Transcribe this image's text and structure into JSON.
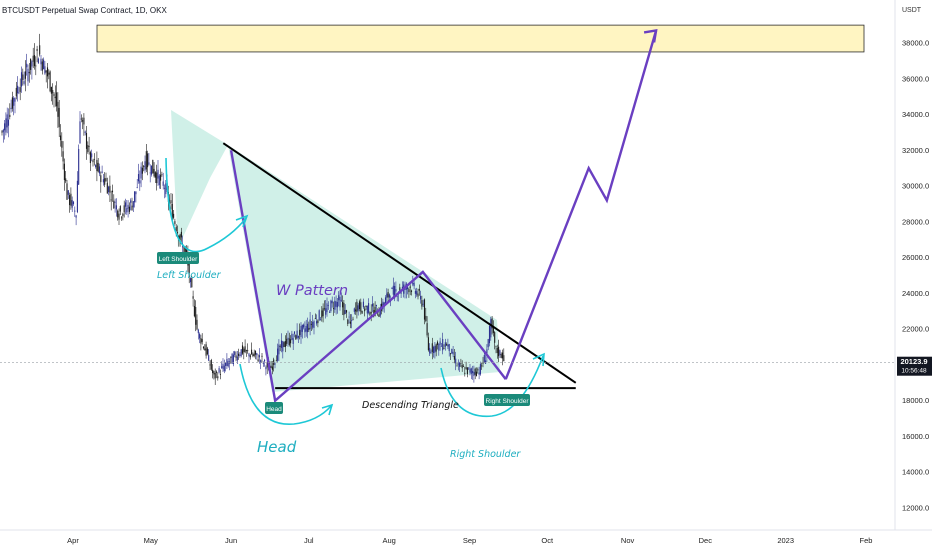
{
  "header": {
    "symbol_title": "BTCUSDT Perpetual Swap Contract, 1D, OKX"
  },
  "price_axis": {
    "unit_label": "USDT"
  },
  "last_price": {
    "value": "20123.9",
    "countdown": "10:56:48"
  },
  "colors": {
    "up": "#26a69a",
    "down": "#1a1a1a",
    "candle": "#2b2f8f",
    "pattern": "#6a3fc1",
    "cyan": "#1ec8d6",
    "fill": "#a9e3d6",
    "zone": "#fff5c2",
    "badge": "#1b8a7a"
  },
  "chart_data": {
    "type": "candlestick",
    "title": "BTCUSDT Perpetual Swap Contract, 1D, OKX",
    "y_unit": "USDT",
    "ylim": [
      11500,
      41000
    ],
    "y_ticks": [
      "12000.0",
      "14000.0",
      "16000.0",
      "18000.0",
      "20000.0",
      "22000.0",
      "24000.0",
      "26000.0",
      "28000.0",
      "30000.0",
      "32000.0",
      "34000.0",
      "36000.0",
      "38000.0"
    ],
    "x_ticks": [
      "Apr",
      "May",
      "Jun",
      "Jul",
      "Aug",
      "Sep",
      "Oct",
      "Nov",
      "Dec",
      "2023",
      "Feb"
    ],
    "grid": false,
    "resistance_zone": [
      37500,
      39000
    ],
    "descending_triangle": {
      "upper_line": [
        {
          "date": "2022-05-29",
          "price": 32400
        },
        {
          "date": "2022-10-12",
          "price": 19000
        }
      ],
      "lower_line": [
        {
          "date": "2022-06-18",
          "price": 18700
        },
        {
          "date": "2022-10-12",
          "price": 18700
        }
      ]
    },
    "w_pattern_path": [
      {
        "date": "2022-06-01",
        "price": 32000
      },
      {
        "date": "2022-06-18",
        "price": 18000
      },
      {
        "date": "2022-08-14",
        "price": 25200
      },
      {
        "date": "2022-09-15",
        "price": 19200
      }
    ],
    "projection_path": [
      {
        "date": "2022-09-15",
        "price": 19200
      },
      {
        "date": "2022-10-17",
        "price": 31000
      },
      {
        "date": "2022-10-24",
        "price": 29200
      },
      {
        "date": "2022-11-12",
        "price": 38700
      }
    ],
    "annotations": {
      "w_pattern": "W Pattern",
      "descending_triangle": "Descending Triangle",
      "left_shoulder": "Left Shoulder",
      "head": "Head",
      "right_shoulder": "Right Shoulder",
      "left_shoulder_badge": "Left Shoulder",
      "head_badge": "Head",
      "right_shoulder_badge": "Right Shoulder"
    }
  }
}
